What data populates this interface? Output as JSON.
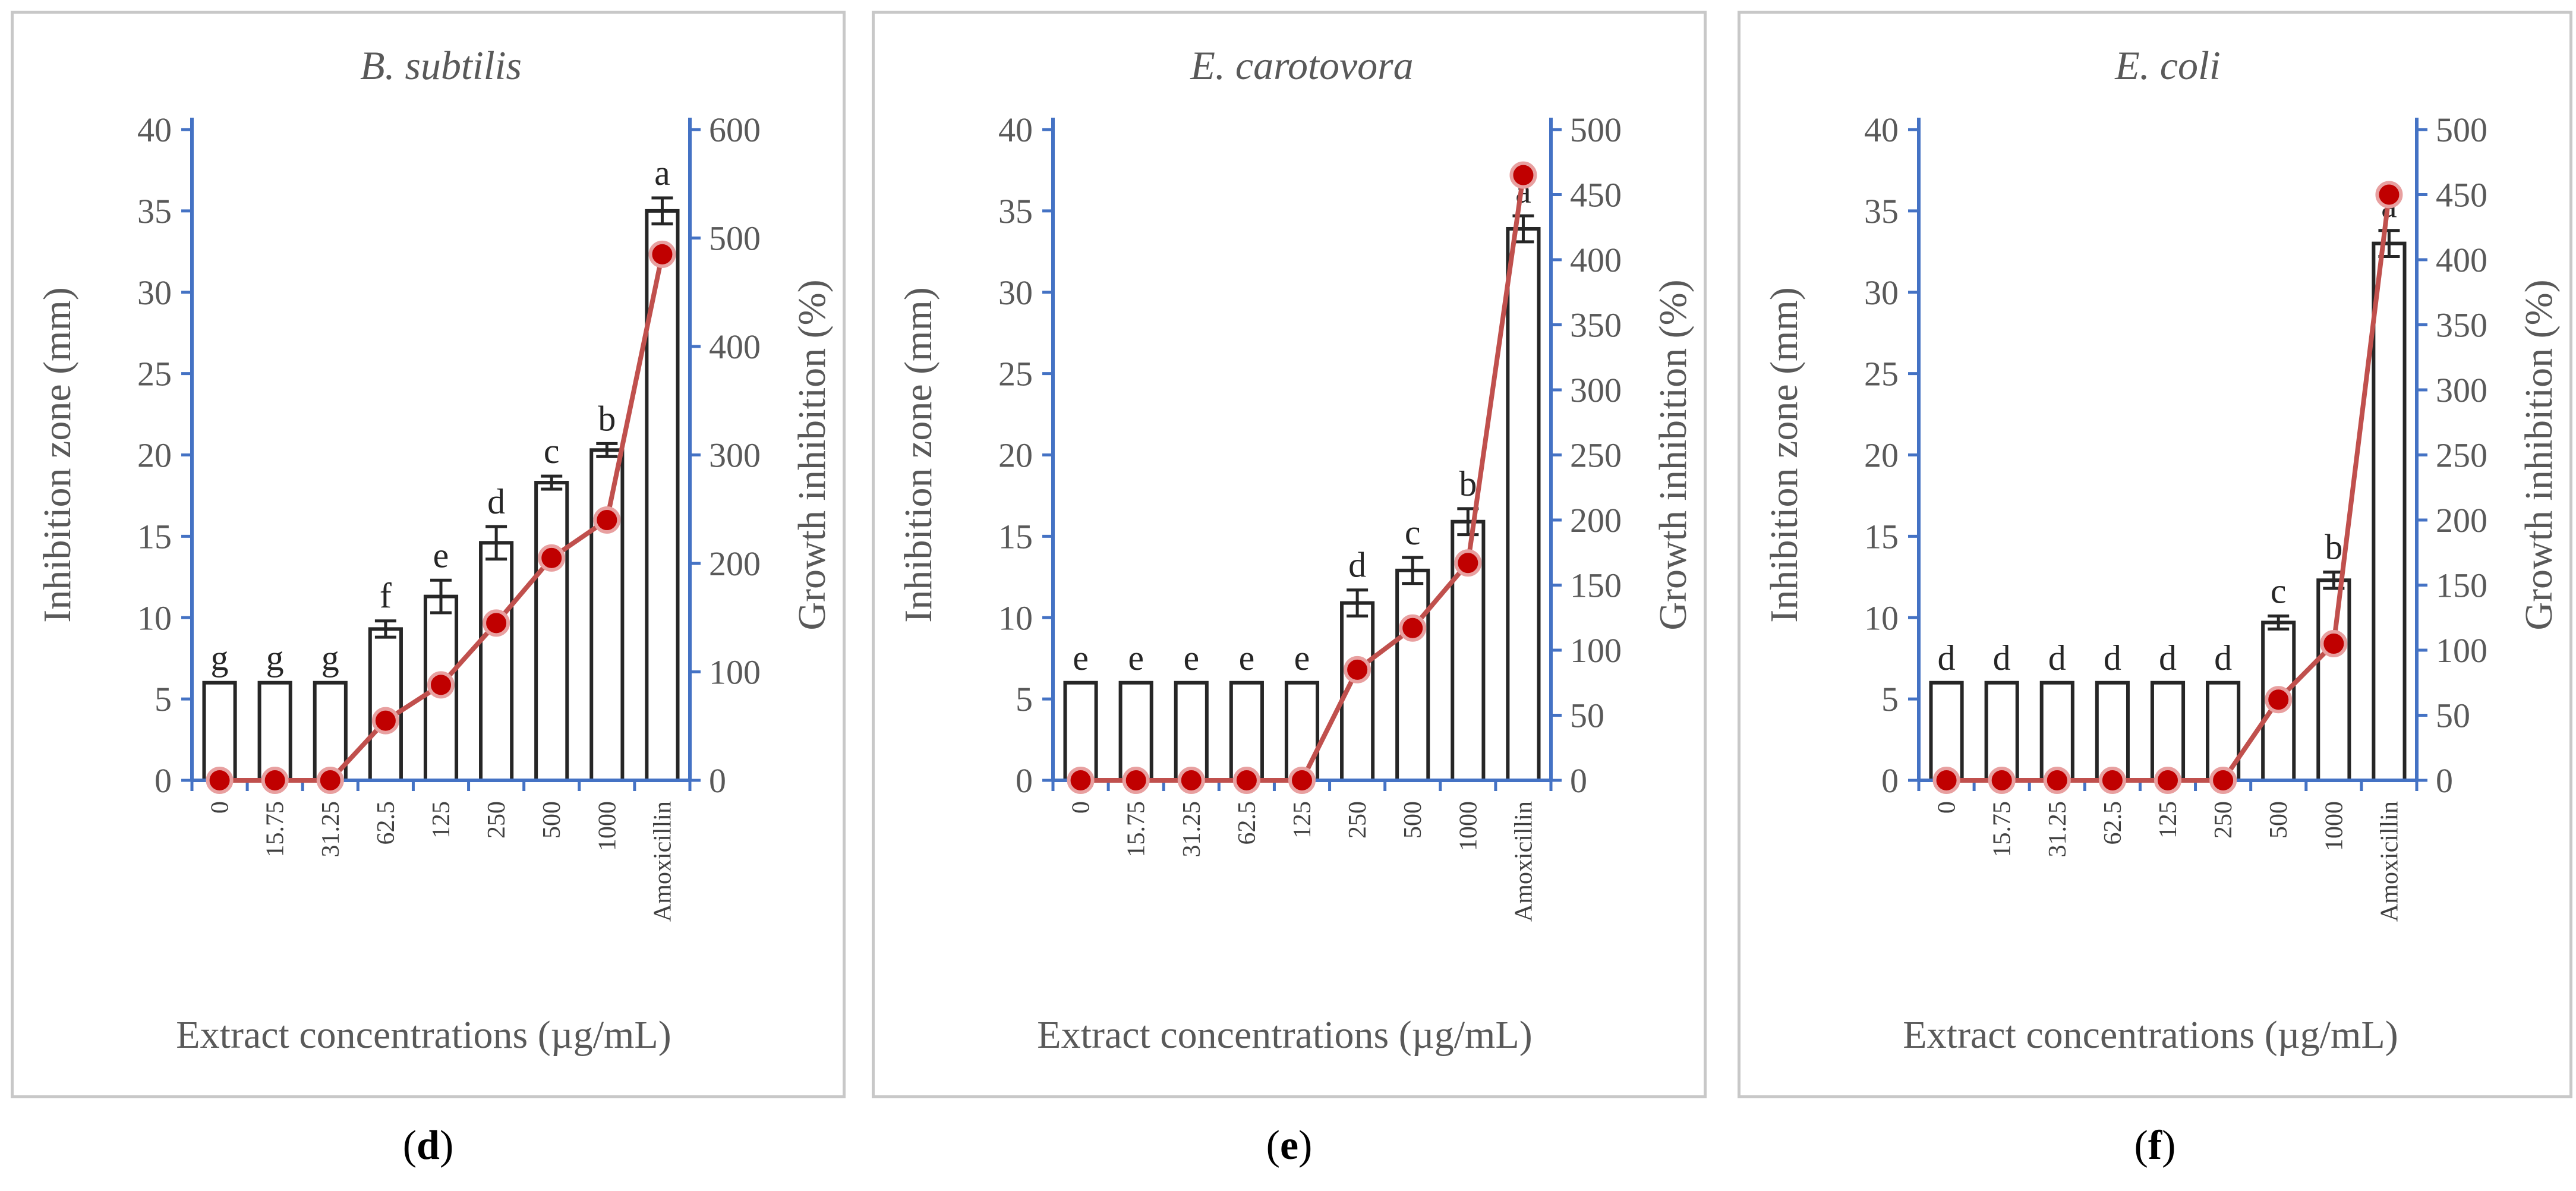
{
  "colors": {
    "axis": "#4472c4",
    "bar_edge": "#262626",
    "line": "#c0504d",
    "marker_fill": "#c00000",
    "text": "#595959"
  },
  "chart_data": [
    {
      "type": "bar+line",
      "panel_label": "d",
      "title": "B. subtilis",
      "xlabel": "Extract concentrations (µg/mL)",
      "ylabel": "Inhibition zone (mm)",
      "y2label": "Growth inhibition (%)",
      "ylim": [
        0,
        40
      ],
      "yticks": [
        "0",
        "5",
        "10",
        "15",
        "20",
        "25",
        "30",
        "35",
        "40"
      ],
      "y2lim": [
        0,
        600
      ],
      "y2ticks": [
        "0",
        "100",
        "200",
        "300",
        "400",
        "500",
        "600"
      ],
      "categories": [
        "0",
        "15.75",
        "31.25",
        "62.5",
        "125",
        "250",
        "500",
        "1000",
        "Amoxicillin"
      ],
      "bars": {
        "name": "Inhibition zone (mm)",
        "values": [
          6,
          6,
          6,
          9.3,
          11.3,
          14.6,
          18.3,
          20.3,
          35
        ],
        "errors": [
          0,
          0,
          0,
          0.5,
          1.0,
          1.0,
          0.4,
          0.4,
          0.8
        ],
        "letters": [
          "g",
          "g",
          "g",
          "f",
          "e",
          "d",
          "c",
          "b",
          "a"
        ]
      },
      "line": {
        "name": "Growth inhibition (%)",
        "values": [
          0,
          0,
          0,
          55,
          88,
          145,
          205,
          240,
          485
        ]
      }
    },
    {
      "type": "bar+line",
      "panel_label": "e",
      "title": "E. carotovora",
      "xlabel": "Extract concentrations (µg/mL)",
      "ylabel": "Inhibition zone (mm)",
      "y2label": "Growth inhibition (%)",
      "ylim": [
        0,
        40
      ],
      "yticks": [
        "0",
        "5",
        "10",
        "15",
        "20",
        "25",
        "30",
        "35",
        "40"
      ],
      "y2lim": [
        0,
        500
      ],
      "y2ticks": [
        "0",
        "50",
        "100",
        "150",
        "200",
        "250",
        "300",
        "350",
        "400",
        "450",
        "500"
      ],
      "categories": [
        "0",
        "15.75",
        "31.25",
        "62.5",
        "125",
        "250",
        "500",
        "1000",
        "Amoxicillin"
      ],
      "bars": {
        "name": "Inhibition zone (mm)",
        "values": [
          6,
          6,
          6,
          6,
          6,
          10.9,
          12.9,
          15.9,
          33.9
        ],
        "errors": [
          0,
          0,
          0,
          0,
          0,
          0.8,
          0.8,
          0.8,
          0.8
        ],
        "letters": [
          "e",
          "e",
          "e",
          "e",
          "e",
          "d",
          "c",
          "b",
          "a"
        ]
      },
      "line": {
        "name": "Growth inhibition (%)",
        "values": [
          0,
          0,
          0,
          0,
          0,
          85,
          117,
          167,
          465
        ]
      }
    },
    {
      "type": "bar+line",
      "panel_label": "f",
      "title": "E. coli",
      "xlabel": "Extract concentrations (µg/mL)",
      "ylabel": "Inhibition zone (mm)",
      "y2label": "Growth inhibition (%)",
      "ylim": [
        0,
        40
      ],
      "yticks": [
        "0",
        "5",
        "10",
        "15",
        "20",
        "25",
        "30",
        "35",
        "40"
      ],
      "y2lim": [
        0,
        500
      ],
      "y2ticks": [
        "0",
        "50",
        "100",
        "150",
        "200",
        "250",
        "300",
        "350",
        "400",
        "450",
        "500"
      ],
      "categories": [
        "0",
        "15.75",
        "31.25",
        "62.5",
        "125",
        "250",
        "500",
        "1000",
        "Amoxicillin"
      ],
      "bars": {
        "name": "Inhibition zone (mm)",
        "values": [
          6,
          6,
          6,
          6,
          6,
          6,
          9.7,
          12.3,
          33
        ],
        "errors": [
          0,
          0,
          0,
          0,
          0,
          0,
          0.4,
          0.5,
          0.8
        ],
        "letters": [
          "d",
          "d",
          "d",
          "d",
          "d",
          "d",
          "c",
          "b",
          "a"
        ]
      },
      "line": {
        "name": "Growth inhibition (%)",
        "values": [
          0,
          0,
          0,
          0,
          0,
          0,
          62,
          105,
          450
        ]
      }
    }
  ]
}
